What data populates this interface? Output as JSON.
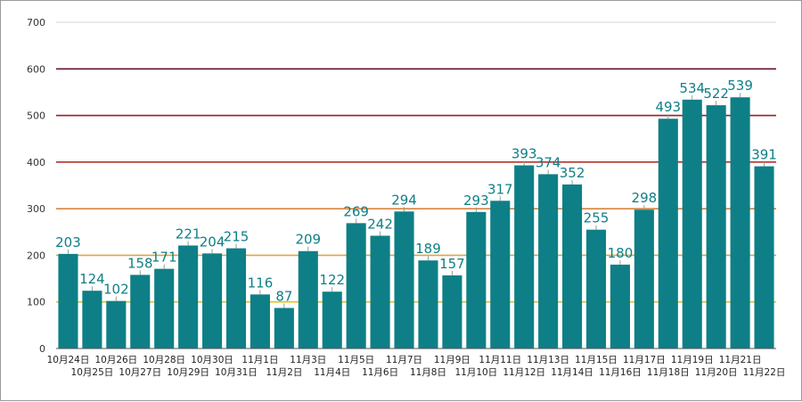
{
  "chart_data": {
    "type": "bar",
    "categories": [
      "10月24日",
      "10月25日",
      "10月26日",
      "10月27日",
      "10月28日",
      "10月29日",
      "10月30日",
      "10月31日",
      "11月1日",
      "11月2日",
      "11月3日",
      "11月4日",
      "11月5日",
      "11月6日",
      "11月7日",
      "11月8日",
      "11月9日",
      "11月10日",
      "11月11日",
      "11月12日",
      "11月13日",
      "11月14日",
      "11月15日",
      "11月16日",
      "11月17日",
      "11月18日",
      "11月19日",
      "11月20日",
      "11月21日",
      "11月22日"
    ],
    "values": [
      203,
      124,
      102,
      158,
      171,
      221,
      204,
      215,
      116,
      87,
      209,
      122,
      269,
      242,
      294,
      189,
      157,
      293,
      317,
      393,
      374,
      352,
      255,
      180,
      298,
      493,
      534,
      522,
      539,
      391
    ],
    "title": "",
    "xlabel": "",
    "ylabel": "",
    "ylim": [
      0,
      700
    ],
    "yticks": [
      0,
      100,
      200,
      300,
      400,
      500,
      600,
      700
    ],
    "grid": true,
    "reference_lines": [
      {
        "y": 100,
        "color": "#e6c21a"
      },
      {
        "y": 200,
        "color": "#e0a63a"
      },
      {
        "y": 300,
        "color": "#d8843e"
      },
      {
        "y": 400,
        "color": "#b8312c"
      },
      {
        "y": 500,
        "color": "#9e1c24"
      },
      {
        "y": 600,
        "color": "#6a1030"
      }
    ],
    "bar_color": "#0e7f86",
    "label_color": "#0e7f86"
  }
}
